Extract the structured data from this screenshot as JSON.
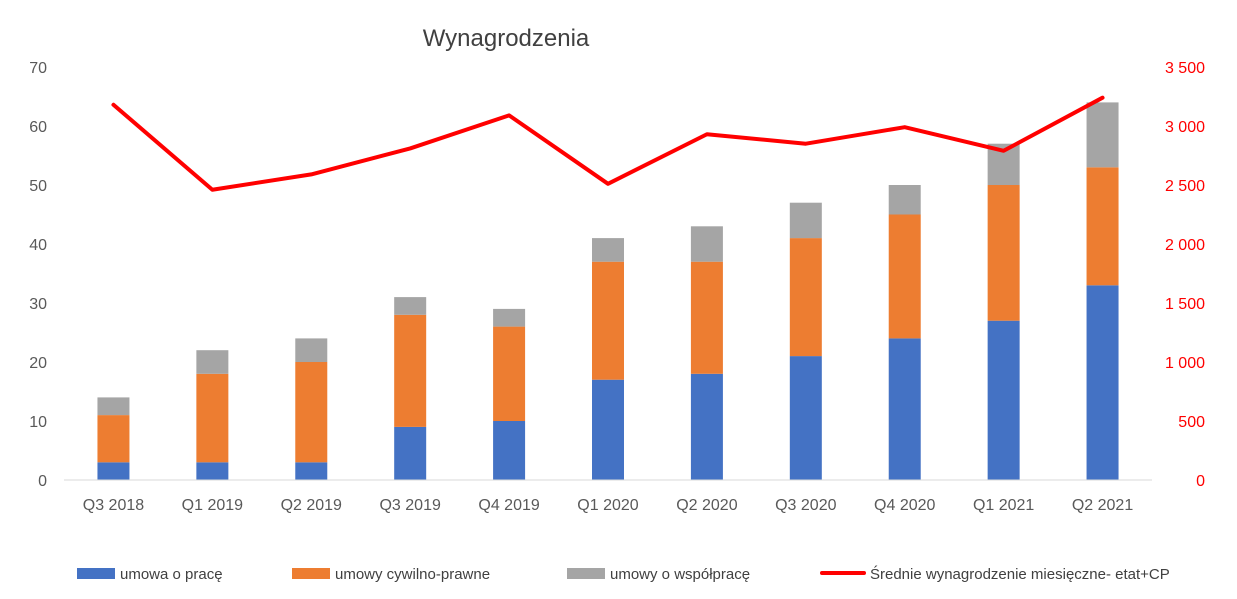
{
  "chart_data": {
    "type": "bar",
    "subtype": "stacked-bar-with-line-secondary-axis",
    "title": "Wynagrodzenia",
    "categories": [
      "Q3 2018",
      "Q1 2019",
      "Q2 2019",
      "Q3 2019",
      "Q4 2019",
      "Q1 2020",
      "Q2 2020",
      "Q3 2020",
      "Q4 2020",
      "Q1 2021",
      "Q2 2021"
    ],
    "series": [
      {
        "name": "umowa o pracę",
        "type": "bar",
        "axis": "left",
        "color": "#4472c4",
        "values": [
          3,
          3,
          3,
          9,
          10,
          17,
          18,
          21,
          24,
          27,
          33
        ]
      },
      {
        "name": "umowy cywilno-prawne",
        "type": "bar",
        "axis": "left",
        "color": "#ed7d31",
        "values": [
          8,
          15,
          17,
          19,
          16,
          20,
          19,
          20,
          21,
          23,
          20
        ]
      },
      {
        "name": "umowy o współpracę",
        "type": "bar",
        "axis": "left",
        "color": "#a5a5a5",
        "values": [
          3,
          4,
          4,
          3,
          3,
          4,
          6,
          6,
          5,
          7,
          11
        ]
      },
      {
        "name": "Średnie wynagrodzenie miesięczne- etat+CP",
        "type": "line",
        "axis": "right",
        "color": "#ff0000",
        "values": [
          3180,
          2460,
          2590,
          2810,
          3090,
          2510,
          2930,
          2850,
          2990,
          2790,
          3240
        ]
      }
    ],
    "y_left": {
      "min": 0,
      "max": 70,
      "step": 10,
      "tick_labels": [
        "0",
        "10",
        "20",
        "30",
        "40",
        "50",
        "60",
        "70"
      ]
    },
    "y_right": {
      "min": 0,
      "max": 3500,
      "step": 500,
      "tick_labels": [
        "0",
        "500",
        "1 000",
        "1 500",
        "2 000",
        "2 500",
        "3 000",
        "3 500"
      ],
      "color": "#ff0000"
    },
    "grid": false,
    "legend_position": "bottom"
  }
}
